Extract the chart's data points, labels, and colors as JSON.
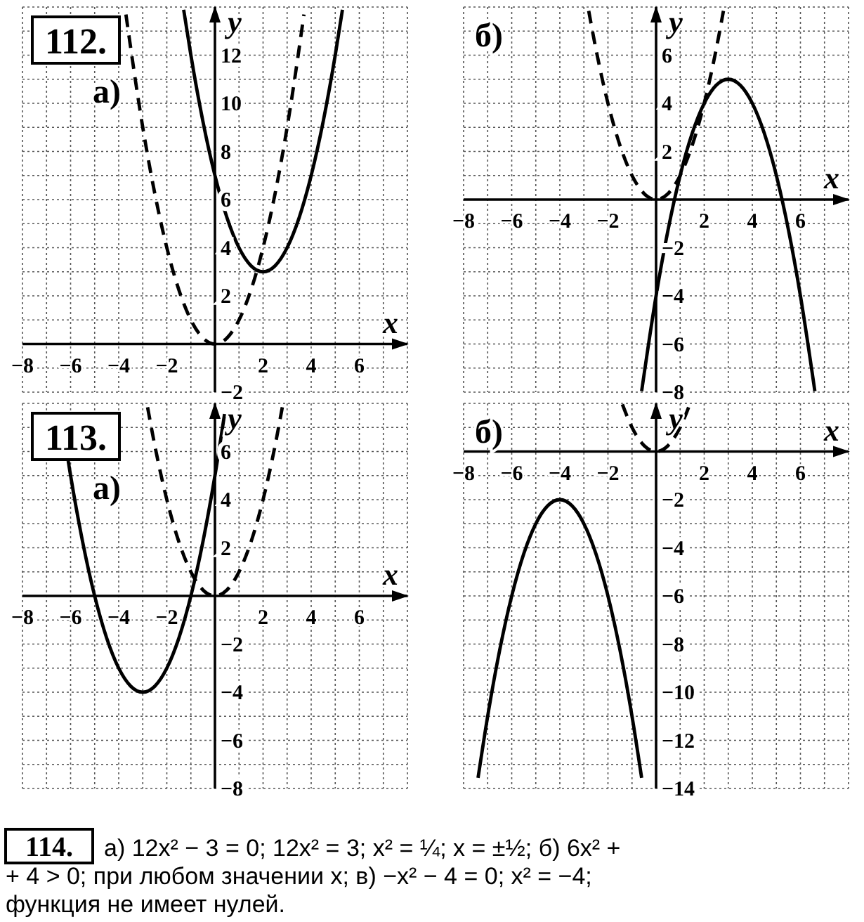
{
  "chart_data": [
    {
      "type": "line",
      "title": "112.",
      "subtitle": "а)",
      "xlabel": "x",
      "ylabel": "y",
      "xlim": [
        -8,
        8
      ],
      "ylim": [
        -2,
        14
      ],
      "grid": true,
      "xticks": [
        {
          "value": -8,
          "label": "−8"
        },
        {
          "value": -6,
          "label": "−6"
        },
        {
          "value": -4,
          "label": "−4"
        },
        {
          "value": -2,
          "label": "−2"
        },
        2,
        4,
        6
      ],
      "yticks": [
        {
          "value": -2,
          "label": "−2"
        },
        2,
        4,
        6,
        8,
        10,
        12
      ],
      "series": [
        {
          "color": "#000000",
          "line_style": "solid",
          "x": [
            -1.3,
            -1,
            -0.5,
            0,
            0.5,
            1,
            1.5,
            2,
            2.5,
            3,
            3.5,
            4,
            4.5,
            5,
            5.3
          ],
          "values": [
            13.89,
            12,
            9.25,
            7,
            5.25,
            4,
            3.25,
            3,
            3.25,
            4,
            5.25,
            7,
            9.25,
            12,
            13.89
          ]
        },
        {
          "color": "#000000",
          "line_style": "dashed",
          "x": [
            -3.7,
            -3,
            -2.5,
            -2,
            -1.5,
            -1,
            -0.5,
            0,
            0.5,
            1,
            1.5,
            2,
            2.5,
            3,
            3.7
          ],
          "values": [
            13.69,
            9,
            6.25,
            4,
            2.25,
            1,
            0.25,
            0,
            0.25,
            1,
            2.25,
            4,
            6.25,
            9,
            13.69
          ]
        }
      ]
    },
    {
      "type": "line",
      "subtitle": "б)",
      "xlabel": "x",
      "ylabel": "y",
      "xlim": [
        -8,
        8
      ],
      "ylim": [
        -8,
        8
      ],
      "grid": true,
      "xticks": [
        {
          "value": -8,
          "label": "−8"
        },
        {
          "value": -6,
          "label": "−6"
        },
        {
          "value": -4,
          "label": "−4"
        },
        {
          "value": -2,
          "label": "−2"
        },
        2,
        4,
        6
      ],
      "yticks": [
        {
          "value": -8,
          "label": "−8"
        },
        {
          "value": -6,
          "label": "−6"
        },
        {
          "value": -4,
          "label": "−4"
        },
        {
          "value": -2,
          "label": "−2"
        },
        2,
        4,
        6
      ],
      "series": [
        {
          "color": "#000000",
          "line_style": "solid",
          "x": [
            -0.6,
            0,
            0.5,
            1,
            1.5,
            2,
            2.5,
            3,
            3.5,
            4,
            4.5,
            5,
            5.5,
            6,
            6.6
          ],
          "values": [
            -7.96,
            -4,
            -1.25,
            1,
            2.75,
            4,
            4.75,
            5,
            4.75,
            4,
            2.75,
            1,
            -1.25,
            -4,
            -7.96
          ]
        },
        {
          "color": "#000000",
          "line_style": "dashed",
          "x": [
            -2.8,
            -2.5,
            -2,
            -1.5,
            -1,
            -0.5,
            0,
            0.5,
            1,
            1.5,
            2,
            2.5,
            2.8
          ],
          "values": [
            7.84,
            6.25,
            4,
            2.25,
            1,
            0.25,
            0,
            0.25,
            1,
            2.25,
            4,
            6.25,
            7.84
          ]
        }
      ]
    },
    {
      "type": "line",
      "title": "113.",
      "subtitle": "а)",
      "xlabel": "x",
      "ylabel": "y",
      "xlim": [
        -8,
        8
      ],
      "ylim": [
        -8,
        8
      ],
      "grid": true,
      "xticks": [
        {
          "value": -8,
          "label": "−8"
        },
        {
          "value": -6,
          "label": "−6"
        },
        {
          "value": -4,
          "label": "−4"
        },
        {
          "value": -2,
          "label": "−2"
        },
        2,
        4,
        6
      ],
      "yticks": [
        {
          "value": -8,
          "label": "−8"
        },
        {
          "value": -6,
          "label": "−6"
        },
        {
          "value": -4,
          "label": "−4"
        },
        {
          "value": -2,
          "label": "−2"
        },
        2,
        4,
        6
      ],
      "series": [
        {
          "color": "#000000",
          "line_style": "solid",
          "x": [
            -6.1,
            -6,
            -5.5,
            -5,
            -4.5,
            -4,
            -3.5,
            -3,
            -2.5,
            -2,
            -1.5,
            -1,
            -0.5,
            0,
            0.4
          ],
          "values": [
            5.61,
            5,
            2.25,
            0,
            -1.75,
            -3,
            -3.75,
            -4,
            -3.75,
            -3,
            -1.75,
            0,
            2.25,
            5,
            7.56
          ]
        },
        {
          "color": "#000000",
          "line_style": "dashed",
          "x": [
            -2.8,
            -2.5,
            -2,
            -1.5,
            -1,
            -0.5,
            0,
            0.5,
            1,
            1.5,
            2,
            2.5,
            2.8
          ],
          "values": [
            7.84,
            6.25,
            4,
            2.25,
            1,
            0.25,
            0,
            0.25,
            1,
            2.25,
            4,
            6.25,
            7.84
          ]
        }
      ]
    },
    {
      "type": "line",
      "subtitle": "б)",
      "xlabel": "x",
      "ylabel": "y",
      "xlim": [
        -8,
        8
      ],
      "ylim": [
        -14,
        2
      ],
      "grid": true,
      "xticks": [
        {
          "value": -8,
          "label": "−8"
        },
        {
          "value": -6,
          "label": "−6"
        },
        {
          "value": -4,
          "label": "−4"
        },
        {
          "value": -2,
          "label": "−2"
        },
        2,
        4,
        6
      ],
      "yticks": [
        {
          "value": -14,
          "label": "−14"
        },
        {
          "value": -12,
          "label": "−12"
        },
        {
          "value": -10,
          "label": "−10"
        },
        {
          "value": -8,
          "label": "−8"
        },
        {
          "value": -6,
          "label": "−6"
        },
        {
          "value": -4,
          "label": "−4"
        },
        {
          "value": -2,
          "label": "−2"
        }
      ],
      "series": [
        {
          "color": "#000000",
          "line_style": "solid",
          "x": [
            -7.4,
            -7,
            -6.5,
            -6,
            -5.5,
            -5,
            -4.5,
            -4,
            -3.5,
            -3,
            -2.5,
            -2,
            -1.5,
            -1,
            -0.6
          ],
          "values": [
            -13.56,
            -11,
            -8.25,
            -6,
            -4.25,
            -3,
            -2.25,
            -2,
            -2.25,
            -3,
            -4.25,
            -6,
            -8.25,
            -11,
            -13.56
          ]
        },
        {
          "color": "#000000",
          "line_style": "dashed",
          "x": [
            -1.4,
            -1,
            -0.5,
            0,
            0.5,
            1,
            1.4
          ],
          "values": [
            1.96,
            1,
            0.25,
            0,
            0.25,
            1,
            1.96
          ]
        }
      ]
    },
    {
      "type": "other",
      "title": "114.",
      "annotations": [
        "а) 12x² − 3 = 0; 12x² = 3; x² = ¼; x = ±½; б) 6x² +",
        "+ 4 > 0; при любом значении x; в) −x² − 4 = 0; x² = −4;",
        "функция не имеет нулей."
      ]
    }
  ]
}
